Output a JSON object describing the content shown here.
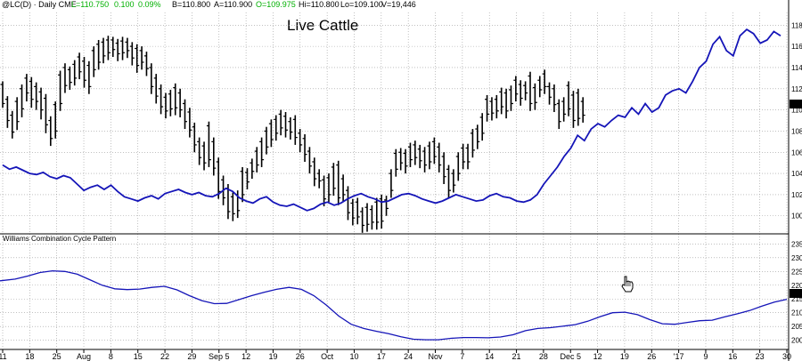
{
  "header": {
    "symbol": "@LC(D) · Daily  CME",
    "last": "L=110.750",
    "change": "0.100",
    "pct": "0.09%",
    "bid": "B=110.800",
    "ask": "A=110.900",
    "open": "O=109.975",
    "high": "Hi=110.800",
    "low": "Lo=109.100",
    "volume": "V=19,446",
    "colors": {
      "text": "#000000",
      "up": "#00b000"
    }
  },
  "chart_data": [
    {
      "type": "bar",
      "title": "Live Cattle",
      "subtype": "ohlc",
      "y_ticks": [
        "118",
        "116",
        "114",
        "112",
        "110",
        "108",
        "106",
        "104",
        "102",
        "100"
      ],
      "last_price_label": "110.",
      "ylim": [
        98.3,
        119.2
      ],
      "bars_x_range": [
        0,
        180
      ],
      "bars": [
        [
          110.2,
          112.4,
          110.6,
          112.7,
          110.4
        ],
        [
          108.6,
          111.0,
          109.0,
          111.3,
          108.3
        ],
        [
          107.6,
          109.5,
          107.9,
          109.9,
          107.3
        ],
        [
          108.4,
          110.8,
          108.9,
          111.2,
          108.1
        ],
        [
          109.7,
          112.0,
          110.1,
          112.4,
          109.3
        ],
        [
          111.1,
          113.0,
          111.6,
          113.4,
          110.8
        ],
        [
          110.5,
          112.7,
          111.0,
          113.1,
          110.2
        ],
        [
          110.3,
          112.2,
          110.8,
          112.6,
          110.0
        ],
        [
          109.5,
          111.7,
          110.0,
          112.1,
          109.1
        ],
        [
          108.2,
          111.1,
          108.6,
          111.5,
          107.8
        ],
        [
          106.9,
          109.0,
          107.3,
          109.4,
          106.6
        ],
        [
          107.6,
          110.5,
          108.0,
          110.8,
          107.3
        ],
        [
          110.2,
          113.3,
          110.6,
          113.7,
          109.9
        ],
        [
          111.9,
          114.0,
          112.3,
          114.4,
          111.6
        ],
        [
          112.2,
          113.8,
          112.6,
          114.1,
          111.9
        ],
        [
          112.6,
          114.3,
          113.0,
          114.7,
          112.3
        ],
        [
          113.2,
          115.0,
          113.6,
          115.4,
          112.9
        ],
        [
          112.4,
          114.6,
          112.8,
          115.0,
          112.1
        ],
        [
          111.8,
          114.2,
          112.2,
          114.6,
          111.5
        ],
        [
          113.4,
          115.6,
          113.8,
          116.0,
          113.1
        ],
        [
          114.1,
          116.2,
          114.5,
          116.6,
          113.8
        ],
        [
          114.7,
          116.4,
          115.1,
          116.8,
          114.4
        ],
        [
          115.0,
          116.6,
          115.4,
          117.0,
          114.7
        ],
        [
          115.3,
          116.6,
          115.7,
          116.9,
          115.0
        ],
        [
          114.9,
          116.3,
          115.3,
          116.7,
          114.6
        ],
        [
          115.0,
          116.5,
          115.4,
          116.9,
          114.7
        ],
        [
          115.2,
          116.4,
          115.6,
          116.8,
          114.9
        ],
        [
          114.5,
          116.0,
          114.9,
          116.4,
          114.2
        ],
        [
          113.8,
          115.8,
          114.2,
          116.2,
          113.5
        ],
        [
          114.1,
          115.6,
          114.5,
          116.0,
          113.8
        ],
        [
          113.5,
          115.1,
          113.9,
          115.5,
          113.2
        ],
        [
          111.8,
          114.0,
          112.2,
          114.4,
          111.5
        ],
        [
          110.9,
          113.0,
          111.3,
          113.4,
          110.6
        ],
        [
          109.9,
          112.0,
          110.3,
          112.4,
          109.6
        ],
        [
          109.5,
          111.2,
          109.9,
          111.6,
          109.2
        ],
        [
          109.7,
          111.5,
          110.1,
          111.9,
          109.4
        ],
        [
          109.8,
          112.1,
          110.2,
          112.5,
          109.5
        ],
        [
          109.6,
          111.6,
          110.0,
          112.0,
          109.3
        ],
        [
          108.5,
          110.6,
          108.9,
          111.0,
          108.2
        ],
        [
          107.7,
          109.8,
          108.1,
          110.2,
          107.4
        ],
        [
          106.3,
          108.4,
          106.7,
          108.8,
          106.0
        ],
        [
          105.1,
          107.0,
          105.5,
          107.4,
          104.8
        ],
        [
          104.6,
          106.6,
          105.0,
          107.0,
          104.3
        ],
        [
          104.9,
          108.5,
          105.3,
          108.9,
          104.6
        ],
        [
          104.1,
          107.0,
          104.5,
          107.4,
          103.8
        ],
        [
          101.9,
          105.1,
          102.3,
          105.5,
          101.6
        ],
        [
          101.3,
          103.4,
          101.7,
          103.8,
          101.0
        ],
        [
          100.0,
          102.6,
          100.4,
          103.0,
          99.7
        ],
        [
          99.8,
          101.8,
          100.2,
          102.2,
          99.5
        ],
        [
          100.1,
          102.0,
          100.5,
          102.4,
          99.8
        ],
        [
          101.6,
          104.2,
          102.0,
          104.6,
          101.3
        ],
        [
          102.8,
          104.1,
          103.2,
          104.5,
          102.5
        ],
        [
          103.8,
          105.0,
          104.2,
          105.4,
          103.5
        ],
        [
          104.4,
          106.1,
          104.8,
          106.5,
          104.1
        ],
        [
          104.9,
          107.0,
          105.3,
          107.4,
          104.6
        ],
        [
          106.1,
          108.0,
          106.5,
          108.4,
          105.8
        ],
        [
          106.8,
          108.7,
          107.2,
          109.1,
          106.5
        ],
        [
          107.4,
          109.1,
          107.8,
          109.5,
          107.1
        ],
        [
          107.9,
          109.6,
          108.3,
          110.0,
          107.6
        ],
        [
          107.7,
          109.4,
          108.1,
          109.8,
          107.4
        ],
        [
          107.5,
          108.9,
          107.9,
          109.3,
          107.2
        ],
        [
          107.0,
          109.1,
          107.4,
          109.5,
          106.7
        ],
        [
          106.3,
          107.8,
          106.7,
          108.2,
          106.0
        ],
        [
          105.4,
          107.3,
          105.8,
          107.7,
          105.1
        ],
        [
          104.3,
          106.1,
          104.7,
          106.5,
          104.0
        ],
        [
          103.1,
          105.1,
          103.5,
          105.5,
          102.8
        ],
        [
          102.9,
          104.0,
          103.3,
          104.4,
          102.6
        ],
        [
          101.2,
          103.4,
          101.6,
          103.8,
          100.9
        ],
        [
          101.6,
          103.6,
          102.0,
          104.0,
          101.3
        ],
        [
          102.2,
          104.6,
          102.6,
          105.0,
          101.9
        ],
        [
          101.3,
          104.8,
          101.7,
          105.2,
          101.0
        ],
        [
          101.6,
          103.5,
          102.0,
          103.9,
          101.3
        ],
        [
          99.9,
          102.4,
          100.3,
          102.8,
          99.6
        ],
        [
          99.4,
          101.2,
          99.8,
          101.6,
          99.1
        ],
        [
          99.5,
          101.3,
          99.9,
          101.7,
          99.2
        ],
        [
          98.7,
          100.4,
          99.1,
          100.8,
          98.4
        ],
        [
          98.8,
          100.8,
          99.2,
          101.2,
          98.5
        ],
        [
          99.0,
          100.6,
          99.4,
          101.0,
          98.7
        ],
        [
          99.0,
          101.3,
          99.4,
          101.7,
          98.7
        ],
        [
          99.1,
          101.6,
          99.5,
          102.0,
          98.8
        ],
        [
          100.3,
          101.5,
          100.7,
          101.9,
          100.0
        ],
        [
          102.0,
          104.0,
          102.4,
          104.4,
          101.7
        ],
        [
          104.0,
          105.9,
          104.4,
          106.3,
          103.7
        ],
        [
          104.6,
          106.0,
          105.0,
          106.4,
          104.3
        ],
        [
          104.3,
          105.9,
          104.7,
          106.3,
          104.0
        ],
        [
          104.9,
          106.5,
          105.3,
          106.9,
          104.6
        ],
        [
          105.1,
          106.7,
          105.5,
          107.1,
          104.8
        ],
        [
          104.8,
          106.3,
          105.2,
          106.7,
          104.5
        ],
        [
          104.4,
          106.1,
          104.8,
          106.5,
          104.1
        ],
        [
          104.7,
          106.6,
          105.1,
          107.0,
          104.4
        ],
        [
          105.2,
          107.0,
          105.6,
          107.4,
          104.9
        ],
        [
          104.4,
          106.5,
          104.8,
          106.9,
          104.1
        ],
        [
          103.3,
          105.6,
          103.7,
          106.0,
          103.0
        ],
        [
          102.0,
          104.4,
          102.4,
          104.8,
          101.7
        ],
        [
          102.5,
          104.0,
          102.9,
          104.4,
          102.2
        ],
        [
          103.6,
          105.6,
          104.0,
          106.0,
          103.3
        ],
        [
          104.7,
          106.4,
          105.1,
          106.8,
          104.4
        ],
        [
          104.7,
          106.4,
          105.1,
          106.8,
          104.4
        ],
        [
          105.8,
          107.8,
          106.2,
          108.2,
          105.5
        ],
        [
          106.6,
          108.2,
          107.0,
          108.6,
          106.3
        ],
        [
          107.4,
          109.3,
          107.8,
          109.7,
          107.1
        ],
        [
          109.2,
          111.0,
          109.6,
          111.4,
          108.9
        ],
        [
          109.3,
          110.8,
          109.7,
          111.2,
          109.0
        ],
        [
          109.5,
          111.0,
          109.9,
          111.4,
          109.2
        ],
        [
          109.9,
          111.7,
          110.3,
          112.1,
          109.6
        ],
        [
          109.5,
          111.6,
          109.9,
          112.0,
          109.2
        ],
        [
          110.2,
          111.9,
          110.6,
          112.3,
          109.9
        ],
        [
          111.1,
          112.8,
          111.5,
          113.2,
          110.8
        ],
        [
          110.7,
          112.4,
          111.1,
          112.8,
          110.4
        ],
        [
          111.2,
          112.3,
          111.6,
          112.7,
          110.9
        ],
        [
          110.2,
          113.2,
          110.6,
          113.6,
          109.9
        ],
        [
          110.3,
          112.1,
          110.7,
          112.5,
          110.0
        ],
        [
          111.5,
          112.8,
          111.9,
          113.2,
          111.2
        ],
        [
          111.8,
          113.4,
          112.2,
          113.8,
          111.5
        ],
        [
          110.8,
          112.2,
          111.2,
          112.6,
          110.5
        ],
        [
          110.1,
          112.0,
          110.5,
          112.4,
          109.8
        ],
        [
          108.5,
          110.6,
          108.9,
          111.0,
          108.2
        ],
        [
          109.2,
          110.8,
          109.6,
          111.2,
          108.9
        ],
        [
          109.7,
          112.3,
          110.1,
          112.7,
          109.4
        ],
        [
          108.6,
          111.4,
          109.0,
          111.8,
          108.3
        ],
        [
          108.8,
          111.6,
          109.2,
          112.0,
          108.5
        ],
        [
          109.1,
          110.8,
          109.5,
          111.2,
          108.8
        ]
      ]
    },
    {
      "type": "line",
      "role": "overlay",
      "x_range": [
        0,
        180
      ],
      "values": [
        104.8,
        104.4,
        104.6,
        104.3,
        104.0,
        103.9,
        104.1,
        103.7,
        103.5,
        103.8,
        103.6,
        103.0,
        102.4,
        102.7,
        102.9,
        102.5,
        102.9,
        102.3,
        101.8,
        101.6,
        101.4,
        101.7,
        101.9,
        101.6,
        102.1,
        102.3,
        102.5,
        102.2,
        102.0,
        102.2,
        101.9,
        101.8,
        102.1,
        102.6,
        102.3,
        101.7,
        101.4,
        101.2,
        101.6,
        101.8,
        101.3,
        101.0,
        100.9,
        101.1,
        100.8,
        100.5,
        100.7,
        101.1,
        101.3,
        101.0,
        101.2,
        101.6,
        101.9,
        102.1,
        101.8,
        101.6,
        101.3,
        101.4,
        101.7,
        102.0,
        102.1,
        101.9,
        101.6,
        101.4,
        101.2,
        101.4,
        101.7,
        102.0,
        101.8,
        101.6,
        101.4,
        101.5,
        101.9,
        102.1,
        101.8,
        101.7,
        101.4,
        101.3,
        101.5,
        102.0,
        103.0,
        103.8,
        104.6,
        105.6,
        106.4,
        107.6,
        107.1,
        108.2,
        108.7,
        108.4,
        109.0,
        109.5,
        109.3,
        110.2,
        109.6,
        110.6,
        109.8,
        110.2,
        111.4,
        111.8,
        112.0,
        111.6,
        112.7,
        114.0,
        114.6,
        116.2,
        116.9,
        115.6,
        115.1,
        117.0,
        117.6,
        117.2,
        116.3,
        116.6,
        117.4,
        117.0
      ]
    },
    {
      "type": "line",
      "title": "Williams Combination Cycle Pattern",
      "y_ticks": [
        "235",
        "230",
        "225",
        "220",
        "215",
        "210",
        "205",
        "200"
      ],
      "last_value_label": "214",
      "ylim": [
        197,
        238
      ],
      "x_range": [
        0,
        180
      ],
      "values": [
        221.6,
        222.2,
        223.3,
        224.6,
        225.2,
        225.0,
        224.0,
        222.0,
        220.0,
        218.7,
        218.4,
        218.6,
        219.2,
        219.6,
        218.3,
        216.2,
        214.4,
        213.3,
        213.4,
        214.8,
        216.2,
        217.4,
        218.5,
        219.2,
        218.5,
        216.2,
        212.8,
        208.8,
        205.8,
        204.3,
        203.3,
        202.4,
        201.3,
        200.4,
        200.2,
        200.2,
        200.7,
        201.0,
        201.0,
        200.9,
        201.2,
        202.0,
        203.5,
        204.3,
        204.6,
        205.1,
        205.7,
        206.9,
        208.6,
        210.0,
        210.2,
        209.3,
        207.5,
        206.0,
        205.8,
        206.5,
        207.1,
        207.3,
        208.5,
        209.6,
        210.8,
        212.4,
        213.9,
        214.9
      ]
    }
  ],
  "x_axis_labels": [
    "11",
    "18",
    "25",
    "Aug",
    "8",
    "15",
    "22",
    "29",
    "Sep 5",
    "12",
    "19",
    "26",
    "Oct",
    "10",
    "17",
    "24",
    "Nov",
    "7",
    "14",
    "21",
    "28",
    "Dec 5",
    "12",
    "19",
    "26",
    "'17",
    "9",
    "16",
    "23",
    "30"
  ],
  "colors": {
    "bars": "#000000",
    "overlay": "#1515b8",
    "indicator": "#1515b8",
    "grid": "#9a9a9a",
    "last_marker": "#000000"
  },
  "icons": [
    "hand-cursor-icon"
  ]
}
